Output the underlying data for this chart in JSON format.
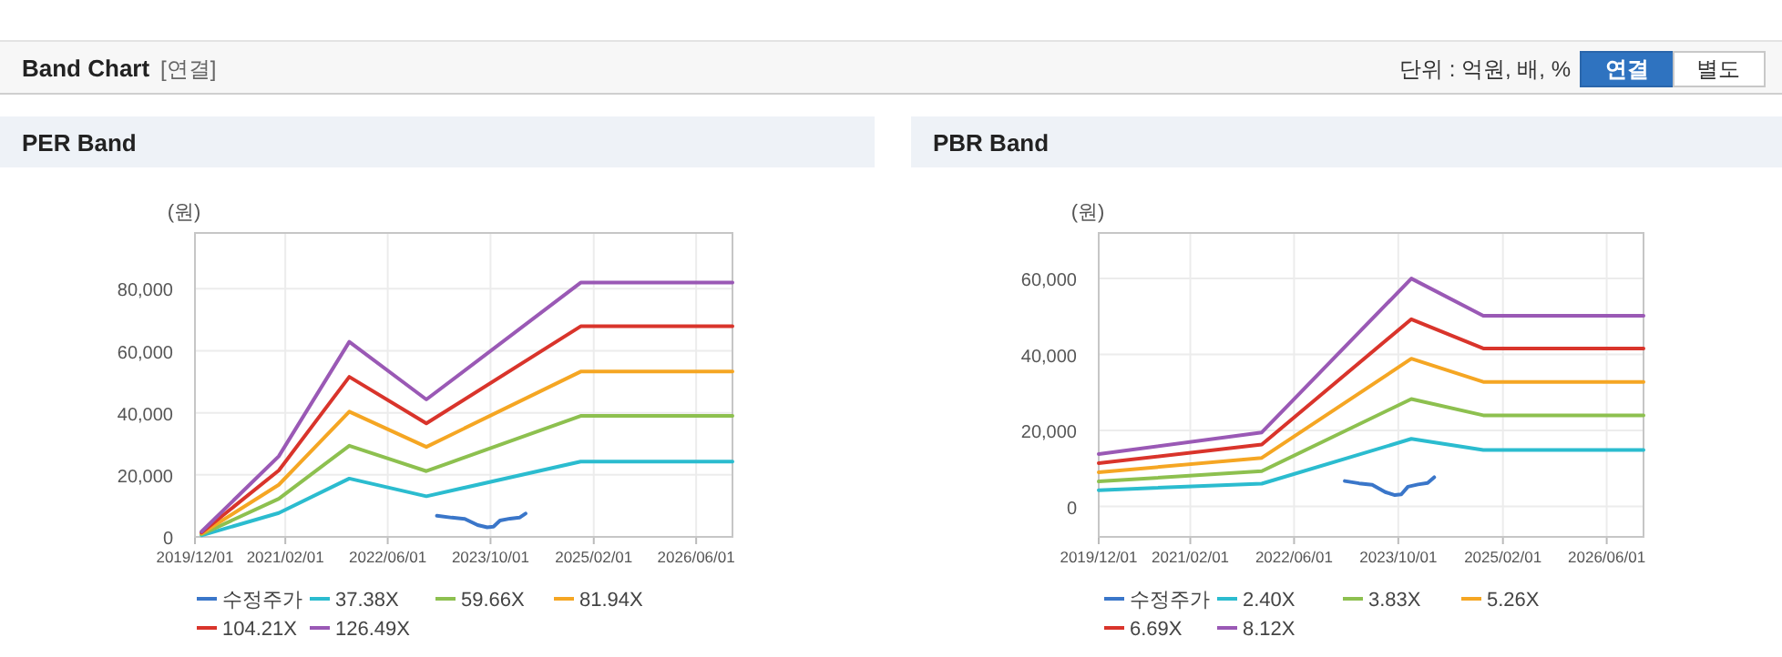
{
  "chart_data": [
    {
      "type": "other",
      "title": "Band Chart",
      "subtitle": "[연결]",
      "annotations": [
        "단위 : 억원, 배, %",
        "연결",
        "별도"
      ]
    },
    {
      "type": "line",
      "title": "PER Band",
      "ylabel": "(원)",
      "grid": true,
      "legend": "bottom",
      "xlim": [
        "2019-12-01",
        "2026-11-20"
      ],
      "ylim": [
        0,
        98000
      ],
      "xticks": [
        {
          "value": "2019-12-01",
          "label": "2019/12/01"
        },
        {
          "value": "2021-02-01",
          "label": "2021/02/01"
        },
        {
          "value": "2022-06-01",
          "label": "2022/06/01"
        },
        {
          "value": "2023-10-01",
          "label": "2023/10/01"
        },
        {
          "value": "2025-02-01",
          "label": "2025/02/01"
        },
        {
          "value": "2026-06-01",
          "label": "2026/06/01"
        }
      ],
      "yticks": [
        0,
        {
          "value": 20000,
          "label": "20,000"
        },
        {
          "value": 40000,
          "label": "40,000"
        },
        {
          "value": 60000,
          "label": "60,000"
        },
        {
          "value": 80000,
          "label": "80,000"
        }
      ],
      "series": [
        {
          "name": "수정주가",
          "color": "#3a76c9",
          "x": [
            "2023-01-20",
            "2023-04-01",
            "2023-06-01",
            "2023-08-01",
            "2023-09-15",
            "2023-10-15",
            "2023-11-15",
            "2024-01-01",
            "2024-02-15",
            "2024-03-15"
          ],
          "values": [
            6800,
            6200,
            5800,
            3800,
            3100,
            3300,
            5300,
            5900,
            6200,
            7500
          ]
        },
        {
          "name": "37.38X",
          "color": "#2bbccf",
          "x": [
            "2020-01-01",
            "2021-01-01",
            "2021-12-01",
            "2022-12-01",
            "2024-12-01",
            "2026-11-20"
          ],
          "values": [
            500,
            7700,
            18800,
            13100,
            24300,
            24300
          ]
        },
        {
          "name": "59.66X",
          "color": "#8dc04f",
          "x": [
            "2020-01-01",
            "2021-01-01",
            "2021-12-01",
            "2022-12-01",
            "2024-12-01",
            "2026-11-20"
          ],
          "values": [
            800,
            12300,
            29400,
            21200,
            39000,
            39000
          ]
        },
        {
          "name": "81.94X",
          "color": "#f5a623",
          "x": [
            "2020-01-01",
            "2021-01-01",
            "2021-12-01",
            "2022-12-01",
            "2024-12-01",
            "2026-11-20"
          ],
          "values": [
            1100,
            16800,
            40400,
            29000,
            53300,
            53300
          ]
        },
        {
          "name": "104.21X",
          "color": "#d9342b",
          "x": [
            "2020-01-01",
            "2021-01-01",
            "2021-12-01",
            "2022-12-01",
            "2024-12-01",
            "2026-11-20"
          ],
          "values": [
            1400,
            21400,
            51600,
            36600,
            67900,
            67900
          ]
        },
        {
          "name": "126.49X",
          "color": "#9a59b5",
          "x": [
            "2020-01-01",
            "2021-01-01",
            "2021-12-01",
            "2022-12-01",
            "2024-12-01",
            "2026-11-20"
          ],
          "values": [
            1700,
            26000,
            62900,
            44300,
            82000,
            82000
          ]
        }
      ]
    },
    {
      "type": "line",
      "title": "PBR Band",
      "ylabel": "(원)",
      "grid": true,
      "legend": "bottom",
      "xlim": [
        "2019-12-01",
        "2026-11-20"
      ],
      "ylim": [
        -8000,
        72000
      ],
      "xticks": [
        {
          "value": "2019-12-01",
          "label": "2019/12/01"
        },
        {
          "value": "2021-02-01",
          "label": "2021/02/01"
        },
        {
          "value": "2022-06-01",
          "label": "2022/06/01"
        },
        {
          "value": "2023-10-01",
          "label": "2023/10/01"
        },
        {
          "value": "2025-02-01",
          "label": "2025/02/01"
        },
        {
          "value": "2026-06-01",
          "label": "2026/06/01"
        }
      ],
      "yticks": [
        0,
        {
          "value": 20000,
          "label": "20,000"
        },
        {
          "value": 40000,
          "label": "40,000"
        },
        {
          "value": 60000,
          "label": "60,000"
        }
      ],
      "series": [
        {
          "name": "수정주가",
          "color": "#3a76c9",
          "x": [
            "2023-01-24",
            "2023-04-01",
            "2023-06-01",
            "2023-08-01",
            "2023-09-15",
            "2023-10-15",
            "2023-11-15",
            "2024-01-01",
            "2024-02-15",
            "2024-03-17"
          ],
          "values": [
            6700,
            6100,
            5700,
            3800,
            3000,
            3200,
            5200,
            5800,
            6200,
            7700
          ]
        },
        {
          "name": "2.40X",
          "color": "#2bbccf",
          "x": [
            "2019-12-01",
            "2022-01-01",
            "2023-12-01",
            "2024-11-01",
            "2026-11-20"
          ],
          "values": [
            4300,
            6000,
            17800,
            14900,
            14900
          ]
        },
        {
          "name": "3.83X",
          "color": "#8dc04f",
          "x": [
            "2019-12-01",
            "2022-01-01",
            "2023-12-01",
            "2024-11-01",
            "2026-11-20"
          ],
          "values": [
            6600,
            9300,
            28300,
            24000,
            24000
          ]
        },
        {
          "name": "5.26X",
          "color": "#f5a623",
          "x": [
            "2019-12-01",
            "2022-01-01",
            "2023-12-01",
            "2024-11-01",
            "2026-11-20"
          ],
          "values": [
            9000,
            12800,
            38900,
            32800,
            32800
          ]
        },
        {
          "name": "6.69X",
          "color": "#d9342b",
          "x": [
            "2019-12-01",
            "2022-01-01",
            "2023-12-01",
            "2024-11-01",
            "2026-11-20"
          ],
          "values": [
            11400,
            16300,
            49300,
            41600,
            41600
          ]
        },
        {
          "name": "8.12X",
          "color": "#9a59b5",
          "x": [
            "2019-12-01",
            "2022-01-01",
            "2023-12-01",
            "2024-11-01",
            "2026-11-20"
          ],
          "values": [
            13800,
            19500,
            60000,
            50200,
            50200
          ]
        }
      ]
    }
  ]
}
